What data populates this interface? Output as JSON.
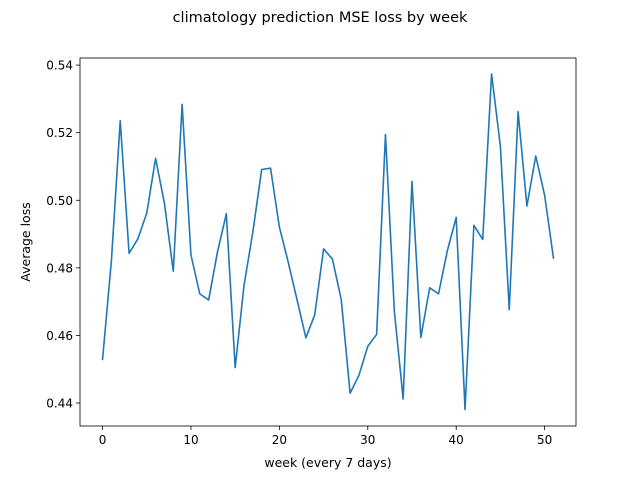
{
  "chart_data": {
    "type": "line",
    "title": "climatology prediction MSE loss by week",
    "xlabel": "week (every 7 days)",
    "ylabel": "Average loss",
    "xlim": [
      -2.55,
      53.55
    ],
    "ylim": [
      0.4332,
      0.5421
    ],
    "xticks": [
      0,
      10,
      20,
      30,
      40,
      50
    ],
    "yticks": [
      0.44,
      0.46,
      0.48,
      0.5,
      0.52,
      0.54
    ],
    "ytick_labels": [
      "0.44",
      "0.46",
      "0.48",
      "0.50",
      "0.52",
      "0.54"
    ],
    "grid": false,
    "line_color": "#1f77b4",
    "series": [
      {
        "x": [
          0,
          1,
          2,
          3,
          4,
          5,
          6,
          7,
          8,
          9,
          10,
          11,
          12,
          13,
          14,
          15,
          16,
          17,
          18,
          19,
          20,
          21,
          22,
          23,
          24,
          25,
          26,
          27,
          28,
          29,
          30,
          31,
          32,
          33,
          34,
          35,
          36,
          37,
          38,
          39,
          40,
          41,
          42,
          43,
          44,
          45,
          46,
          47,
          48,
          49,
          50,
          51
        ],
        "values": [
          0.4529,
          0.482,
          0.5235,
          0.4843,
          0.4886,
          0.4962,
          0.5124,
          0.4991,
          0.479,
          0.5284,
          0.4838,
          0.4723,
          0.4705,
          0.4847,
          0.496,
          0.4505,
          0.4748,
          0.4906,
          0.5091,
          0.5095,
          0.4921,
          0.4817,
          0.4705,
          0.4593,
          0.4661,
          0.4856,
          0.4826,
          0.4706,
          0.4429,
          0.4482,
          0.4568,
          0.4603,
          0.5195,
          0.4673,
          0.4412,
          0.5056,
          0.4594,
          0.4741,
          0.4723,
          0.4851,
          0.4949,
          0.4381,
          0.4926,
          0.4884,
          0.5374,
          0.5159,
          0.4676,
          0.5262,
          0.4983,
          0.5131,
          0.5015,
          0.4829
        ]
      }
    ]
  }
}
